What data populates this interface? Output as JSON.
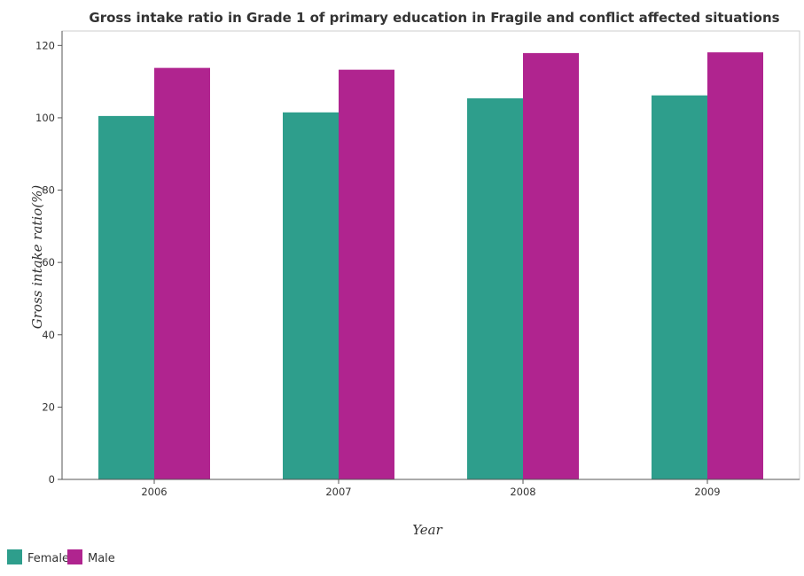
{
  "chart_data": {
    "type": "bar",
    "title": "Gross intake ratio in Grade 1 of primary education in Fragile and conflict affected situations",
    "xlabel": "Year",
    "ylabel": "Gross intake ratio(%)",
    "categories": [
      "2006",
      "2007",
      "2008",
      "2009"
    ],
    "series": [
      {
        "name": "Female",
        "color": "#2e9e8c",
        "values": [
          100.5,
          101.5,
          105.4,
          106.2
        ]
      },
      {
        "name": "Male",
        "color": "#b0248f",
        "values": [
          113.8,
          113.3,
          117.9,
          118.1
        ]
      }
    ],
    "ylim": [
      0,
      124
    ],
    "yticks": [
      0,
      20,
      40,
      60,
      80,
      100,
      120
    ],
    "grid": false,
    "legend_position": "bottom-left"
  }
}
